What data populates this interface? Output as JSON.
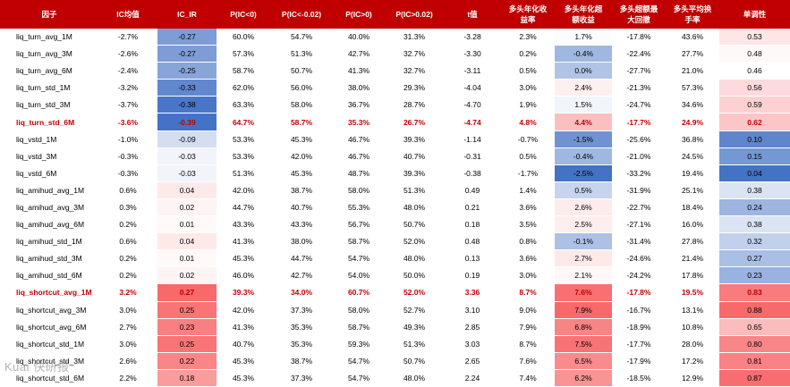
{
  "columns": [
    "因子",
    "IC均值",
    "IC_IR",
    "P(IC<0)",
    "P(IC<-0.02)",
    "P(IC>0)",
    "P(IC>0.02)",
    "t值",
    "多头年化收益率",
    "多头年化超额收益",
    "多头超额最大回撤",
    "多头平均换手率",
    "单调性"
  ],
  "column_headers": [
    "因子",
    "IC均值",
    "IC_IR",
    "P(IC<0)",
    "P(IC<-0.02)",
    "P(IC>0)",
    "P(IC>0.02)",
    "t值",
    "多头年化收\n益率",
    "多头年化超\n额收益",
    "多头超额最\n大回撤",
    "多头平均换\n手率",
    "单调性"
  ],
  "rows": [
    {
      "name": "liq_turn_avg_1M",
      "ic_mean": "-2.7%",
      "ic_ir": "-0.27",
      "p_lt0": "60.0%",
      "p_lt_neg002": "54.7%",
      "p_gt0": "40.0%",
      "p_gt002": "31.3%",
      "t": "-3.28",
      "ret": "2.3%",
      "excess": "1.7%",
      "mdd": "-17.8%",
      "turnover": "43.6%",
      "mono": "0.53",
      "highlight": false,
      "ir_val": -0.27,
      "excess_val": 1.7,
      "mono_val": 0.53
    },
    {
      "name": "liq_turn_avg_3M",
      "ic_mean": "-2.6%",
      "ic_ir": "-0.27",
      "p_lt0": "57.3%",
      "p_lt_neg002": "51.3%",
      "p_gt0": "42.7%",
      "p_gt002": "32.7%",
      "t": "-3.30",
      "ret": "0.2%",
      "excess": "-0.4%",
      "mdd": "-22.4%",
      "turnover": "27.7%",
      "mono": "0.48",
      "highlight": false,
      "ir_val": -0.27,
      "excess_val": -0.4,
      "mono_val": 0.48
    },
    {
      "name": "liq_turn_avg_6M",
      "ic_mean": "-2.4%",
      "ic_ir": "-0.25",
      "p_lt0": "58.7%",
      "p_lt_neg002": "50.7%",
      "p_gt0": "41.3%",
      "p_gt002": "32.7%",
      "t": "-3.11",
      "ret": "0.5%",
      "excess": "0.0%",
      "mdd": "-27.7%",
      "turnover": "21.0%",
      "mono": "0.46",
      "highlight": false,
      "ir_val": -0.25,
      "excess_val": 0.0,
      "mono_val": 0.46
    },
    {
      "name": "liq_turn_std_1M",
      "ic_mean": "-3.2%",
      "ic_ir": "-0.33",
      "p_lt0": "62.0%",
      "p_lt_neg002": "56.0%",
      "p_gt0": "38.0%",
      "p_gt002": "29.3%",
      "t": "-4.04",
      "ret": "3.0%",
      "excess": "2.4%",
      "mdd": "-21.3%",
      "turnover": "57.3%",
      "mono": "0.56",
      "highlight": false,
      "ir_val": -0.33,
      "excess_val": 2.4,
      "mono_val": 0.56
    },
    {
      "name": "liq_turn_std_3M",
      "ic_mean": "-3.7%",
      "ic_ir": "-0.38",
      "p_lt0": "63.3%",
      "p_lt_neg002": "58.0%",
      "p_gt0": "36.7%",
      "p_gt002": "28.7%",
      "t": "-4.70",
      "ret": "1.9%",
      "excess": "1.5%",
      "mdd": "-24.7%",
      "turnover": "34.6%",
      "mono": "0.59",
      "highlight": false,
      "ir_val": -0.38,
      "excess_val": 1.5,
      "mono_val": 0.59
    },
    {
      "name": "liq_turn_std_6M",
      "ic_mean": "-3.6%",
      "ic_ir": "-0.39",
      "p_lt0": "64.7%",
      "p_lt_neg002": "58.7%",
      "p_gt0": "35.3%",
      "p_gt002": "26.7%",
      "t": "-4.74",
      "ret": "4.8%",
      "excess": "4.4%",
      "mdd": "-17.7%",
      "turnover": "24.9%",
      "mono": "0.62",
      "highlight": true,
      "ir_val": -0.39,
      "excess_val": 4.4,
      "mono_val": 0.62
    },
    {
      "name": "liq_vstd_1M",
      "ic_mean": "-1.0%",
      "ic_ir": "-0.09",
      "p_lt0": "53.3%",
      "p_lt_neg002": "45.3%",
      "p_gt0": "46.7%",
      "p_gt002": "39.3%",
      "t": "-1.14",
      "ret": "-0.7%",
      "excess": "-1.5%",
      "mdd": "-25.6%",
      "turnover": "36.8%",
      "mono": "0.10",
      "highlight": false,
      "ir_val": -0.09,
      "excess_val": -1.5,
      "mono_val": 0.1
    },
    {
      "name": "liq_vstd_3M",
      "ic_mean": "-0.3%",
      "ic_ir": "-0.03",
      "p_lt0": "53.3%",
      "p_lt_neg002": "42.0%",
      "p_gt0": "46.7%",
      "p_gt002": "40.7%",
      "t": "-0.31",
      "ret": "0.5%",
      "excess": "-0.4%",
      "mdd": "-21.0%",
      "turnover": "24.5%",
      "mono": "0.15",
      "highlight": false,
      "ir_val": -0.03,
      "excess_val": -0.4,
      "mono_val": 0.15
    },
    {
      "name": "liq_vstd_6M",
      "ic_mean": "-0.3%",
      "ic_ir": "-0.03",
      "p_lt0": "51.3%",
      "p_lt_neg002": "45.3%",
      "p_gt0": "48.7%",
      "p_gt002": "39.3%",
      "t": "-0.38",
      "ret": "-1.7%",
      "excess": "-2.5%",
      "mdd": "-33.2%",
      "turnover": "19.4%",
      "mono": "0.04",
      "highlight": false,
      "ir_val": -0.03,
      "excess_val": -2.5,
      "mono_val": 0.04
    },
    {
      "name": "liq_amihud_avg_1M",
      "ic_mean": "0.6%",
      "ic_ir": "0.04",
      "p_lt0": "42.0%",
      "p_lt_neg002": "38.7%",
      "p_gt0": "58.0%",
      "p_gt002": "51.3%",
      "t": "0.49",
      "ret": "1.4%",
      "excess": "0.5%",
      "mdd": "-31.9%",
      "turnover": "25.1%",
      "mono": "0.38",
      "highlight": false,
      "ir_val": 0.04,
      "excess_val": 0.5,
      "mono_val": 0.38
    },
    {
      "name": "liq_amihud_avg_3M",
      "ic_mean": "0.3%",
      "ic_ir": "0.02",
      "p_lt0": "44.7%",
      "p_lt_neg002": "40.7%",
      "p_gt0": "55.3%",
      "p_gt002": "48.0%",
      "t": "0.21",
      "ret": "3.6%",
      "excess": "2.6%",
      "mdd": "-22.7%",
      "turnover": "18.4%",
      "mono": "0.24",
      "highlight": false,
      "ir_val": 0.02,
      "excess_val": 2.6,
      "mono_val": 0.24
    },
    {
      "name": "liq_amihud_avg_6M",
      "ic_mean": "0.2%",
      "ic_ir": "0.01",
      "p_lt0": "43.3%",
      "p_lt_neg002": "43.3%",
      "p_gt0": "56.7%",
      "p_gt002": "50.7%",
      "t": "0.18",
      "ret": "3.5%",
      "excess": "2.5%",
      "mdd": "-27.1%",
      "turnover": "16.0%",
      "mono": "0.38",
      "highlight": false,
      "ir_val": 0.01,
      "excess_val": 2.5,
      "mono_val": 0.38
    },
    {
      "name": "liq_amihud_std_1M",
      "ic_mean": "0.6%",
      "ic_ir": "0.04",
      "p_lt0": "41.3%",
      "p_lt_neg002": "38.0%",
      "p_gt0": "58.7%",
      "p_gt002": "52.0%",
      "t": "0.48",
      "ret": "0.8%",
      "excess": "-0.1%",
      "mdd": "-31.4%",
      "turnover": "27.8%",
      "mono": "0.32",
      "highlight": false,
      "ir_val": 0.04,
      "excess_val": -0.1,
      "mono_val": 0.32
    },
    {
      "name": "liq_amihud_std_3M",
      "ic_mean": "0.2%",
      "ic_ir": "0.01",
      "p_lt0": "45.3%",
      "p_lt_neg002": "44.7%",
      "p_gt0": "54.7%",
      "p_gt002": "48.0%",
      "t": "0.13",
      "ret": "3.6%",
      "excess": "2.7%",
      "mdd": "-24.6%",
      "turnover": "21.4%",
      "mono": "0.27",
      "highlight": false,
      "ir_val": 0.01,
      "excess_val": 2.7,
      "mono_val": 0.27
    },
    {
      "name": "liq_amihud_std_6M",
      "ic_mean": "0.2%",
      "ic_ir": "0.02",
      "p_lt0": "46.0%",
      "p_lt_neg002": "42.7%",
      "p_gt0": "54.0%",
      "p_gt002": "50.0%",
      "t": "0.19",
      "ret": "3.0%",
      "excess": "2.1%",
      "mdd": "-24.2%",
      "turnover": "17.8%",
      "mono": "0.23",
      "highlight": false,
      "ir_val": 0.02,
      "excess_val": 2.1,
      "mono_val": 0.23
    },
    {
      "name": "liq_shortcut_avg_1M",
      "ic_mean": "3.2%",
      "ic_ir": "0.27",
      "p_lt0": "39.3%",
      "p_lt_neg002": "34.0%",
      "p_gt0": "60.7%",
      "p_gt002": "52.0%",
      "t": "3.36",
      "ret": "8.7%",
      "excess": "7.6%",
      "mdd": "-17.8%",
      "turnover": "19.5%",
      "mono": "0.83",
      "highlight": true,
      "ir_val": 0.27,
      "excess_val": 7.6,
      "mono_val": 0.83
    },
    {
      "name": "liq_shortcut_avg_3M",
      "ic_mean": "3.0%",
      "ic_ir": "0.25",
      "p_lt0": "42.0%",
      "p_lt_neg002": "37.3%",
      "p_gt0": "58.0%",
      "p_gt002": "52.7%",
      "t": "3.10",
      "ret": "9.0%",
      "excess": "7.9%",
      "mdd": "-16.7%",
      "turnover": "13.1%",
      "mono": "0.88",
      "highlight": false,
      "ir_val": 0.25,
      "excess_val": 7.9,
      "mono_val": 0.88
    },
    {
      "name": "liq_shortcut_avg_6M",
      "ic_mean": "2.7%",
      "ic_ir": "0.23",
      "p_lt0": "41.3%",
      "p_lt_neg002": "35.3%",
      "p_gt0": "58.7%",
      "p_gt002": "49.3%",
      "t": "2.85",
      "ret": "7.9%",
      "excess": "6.8%",
      "mdd": "-18.9%",
      "turnover": "10.8%",
      "mono": "0.65",
      "highlight": false,
      "ir_val": 0.23,
      "excess_val": 6.8,
      "mono_val": 0.65
    },
    {
      "name": "liq_shortcut_std_1M",
      "ic_mean": "3.0%",
      "ic_ir": "0.25",
      "p_lt0": "40.7%",
      "p_lt_neg002": "35.3%",
      "p_gt0": "59.3%",
      "p_gt002": "51.3%",
      "t": "3.03",
      "ret": "8.7%",
      "excess": "7.5%",
      "mdd": "-17.7%",
      "turnover": "28.0%",
      "mono": "0.80",
      "highlight": false,
      "ir_val": 0.25,
      "excess_val": 7.5,
      "mono_val": 0.8
    },
    {
      "name": "liq_shortcut_std_3M",
      "ic_mean": "2.6%",
      "ic_ir": "0.22",
      "p_lt0": "45.3%",
      "p_lt_neg002": "38.7%",
      "p_gt0": "54.7%",
      "p_gt002": "50.7%",
      "t": "2.65",
      "ret": "7.6%",
      "excess": "6.5%",
      "mdd": "-17.9%",
      "turnover": "17.2%",
      "mono": "0.81",
      "highlight": false,
      "ir_val": 0.22,
      "excess_val": 6.5,
      "mono_val": 0.81
    },
    {
      "name": "liq_shortcut_std_6M",
      "ic_mean": "2.2%",
      "ic_ir": "0.18",
      "p_lt0": "45.3%",
      "p_lt_neg002": "37.3%",
      "p_gt0": "54.7%",
      "p_gt002": "48.0%",
      "t": "2.24",
      "ret": "7.4%",
      "excess": "6.2%",
      "mdd": "-18.5%",
      "turnover": "12.9%",
      "mono": "0.87",
      "highlight": false,
      "ir_val": 0.18,
      "excess_val": 6.2,
      "mono_val": 0.87
    }
  ],
  "colors": {
    "header_bg": "#c00000",
    "header_text": "#ffffff",
    "highlight_text": "#c00000",
    "heat_negative": "#4472c4",
    "heat_positive": "#f8696b",
    "heat_neutral": "#ffffff"
  },
  "watermark": "Kuai 快研报"
}
